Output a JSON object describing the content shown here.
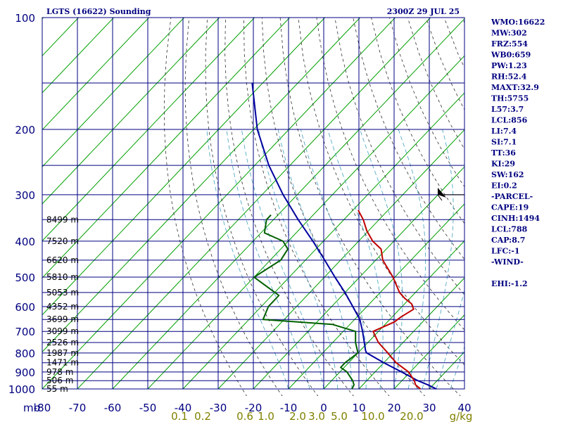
{
  "title": "LGTS (16622) Sounding",
  "valid_time": "2300Z 29 JUL 25",
  "colors": {
    "grid": "#000080",
    "isotherm": "#00a000",
    "dry_adiabat": "#303030",
    "moist_adiabat": "#40a0c0",
    "temperature": "#c00000",
    "dewpoint": "#006000",
    "parcel": "#0000a0",
    "mixing_ratio": "#808000"
  },
  "stats": [
    "WMO:16622",
    "MW:302",
    "FRZ:554",
    "WB0:659",
    "PW:1.23",
    "RH:52.4",
    "MAXT:32.9",
    "TH:5755",
    "L57:3.7",
    "LCL:856",
    "LI:7.4",
    "SI:7.1",
    "TT:36",
    "KI:29",
    "SW:162",
    "EI:0.2",
    "-PARCEL-",
    "CAPE:19",
    "CINH:1494",
    "LCL:788",
    "CAP:8.7",
    "LFC:-1",
    "-WIND-",
    "",
    "EHI:-1.2"
  ],
  "chart_data": {
    "type": "line",
    "title": "LGTS (16622) Sounding",
    "subtitle": "2300Z 29 JUL 25",
    "xlabel": "",
    "ylabel": "mb",
    "xlim": [
      -80,
      40
    ],
    "ylim": [
      1000,
      100
    ],
    "y_scale": "log",
    "pressure_ticks": [
      100,
      200,
      300,
      400,
      500,
      600,
      700,
      800,
      900,
      1000
    ],
    "temperature_ticks": [
      -80,
      -70,
      -60,
      -50,
      -40,
      -30,
      -20,
      -10,
      0,
      10,
      20,
      30,
      40
    ],
    "temperature_tick_labels": [
      "-80",
      "-70",
      "-60",
      "-50",
      "-40",
      "-30",
      "-20",
      "-10",
      "0",
      "10",
      "20",
      "30",
      "40"
    ],
    "mixing_ratio_labels": [
      "0.1",
      "0.2",
      "0.6",
      "1.0",
      "2.0",
      "3.0",
      "5.0",
      "10.0",
      "20.0",
      "g/kg"
    ],
    "height_labels": [
      {
        "p": 1000,
        "label": "55 m"
      },
      {
        "p": 950,
        "label": "506 m"
      },
      {
        "p": 900,
        "label": "978 m"
      },
      {
        "p": 850,
        "label": "1471 m"
      },
      {
        "p": 800,
        "label": "1987 m"
      },
      {
        "p": 750,
        "label": "2526 m"
      },
      {
        "p": 700,
        "label": "3099 m"
      },
      {
        "p": 650,
        "label": "3699 m"
      },
      {
        "p": 600,
        "label": "4352 m"
      },
      {
        "p": 550,
        "label": "5053 m"
      },
      {
        "p": 500,
        "label": "5810 m"
      },
      {
        "p": 450,
        "label": "6620 m"
      },
      {
        "p": 400,
        "label": "7520 m"
      },
      {
        "p": 350,
        "label": "8499 m"
      }
    ],
    "series": [
      {
        "name": "Temperature",
        "points": [
          [
            1000,
            27.5
          ],
          [
            975,
            25
          ],
          [
            950,
            23.5
          ],
          [
            900,
            19.5
          ],
          [
            850,
            13.5
          ],
          [
            800,
            8.5
          ],
          [
            750,
            3
          ],
          [
            700,
            -1.5
          ],
          [
            660,
            2
          ],
          [
            640,
            2.5
          ],
          [
            610,
            4
          ],
          [
            590,
            2
          ],
          [
            570,
            -1.5
          ],
          [
            550,
            -4.5
          ],
          [
            500,
            -10.5
          ],
          [
            450,
            -18
          ],
          [
            420,
            -21.5
          ],
          [
            400,
            -26
          ],
          [
            375,
            -30.5
          ],
          [
            350,
            -34.5
          ],
          [
            330,
            -38.5
          ]
        ]
      },
      {
        "name": "Dewpoint",
        "points": [
          [
            1000,
            8
          ],
          [
            975,
            7.5
          ],
          [
            950,
            6
          ],
          [
            900,
            2
          ],
          [
            875,
            -1
          ],
          [
            850,
            -1
          ],
          [
            800,
            0
          ],
          [
            750,
            -3.5
          ],
          [
            700,
            -6.5
          ],
          [
            670,
            -15
          ],
          [
            650,
            -36
          ],
          [
            600,
            -38
          ],
          [
            560,
            -38
          ],
          [
            500,
            -50
          ],
          [
            450,
            -47
          ],
          [
            420,
            -48
          ],
          [
            400,
            -51.5
          ],
          [
            380,
            -59
          ],
          [
            350,
            -62
          ],
          [
            340,
            -62
          ]
        ]
      },
      {
        "name": "Parcel",
        "points": [
          [
            1000,
            32
          ],
          [
            975,
            28.5
          ],
          [
            950,
            24.5
          ],
          [
            900,
            17.5
          ],
          [
            850,
            10
          ],
          [
            800,
            2.5
          ],
          [
            788,
            1.5
          ],
          [
            750,
            -1
          ],
          [
            700,
            -4.5
          ],
          [
            650,
            -8.5
          ],
          [
            600,
            -14
          ],
          [
            550,
            -20
          ],
          [
            500,
            -27
          ],
          [
            450,
            -34.5
          ],
          [
            400,
            -43
          ],
          [
            350,
            -53
          ],
          [
            300,
            -64
          ],
          [
            250,
            -76
          ],
          [
            200,
            -89
          ],
          [
            150,
            -103
          ]
        ]
      }
    ],
    "wind_barb": {
      "p": 300
    }
  }
}
